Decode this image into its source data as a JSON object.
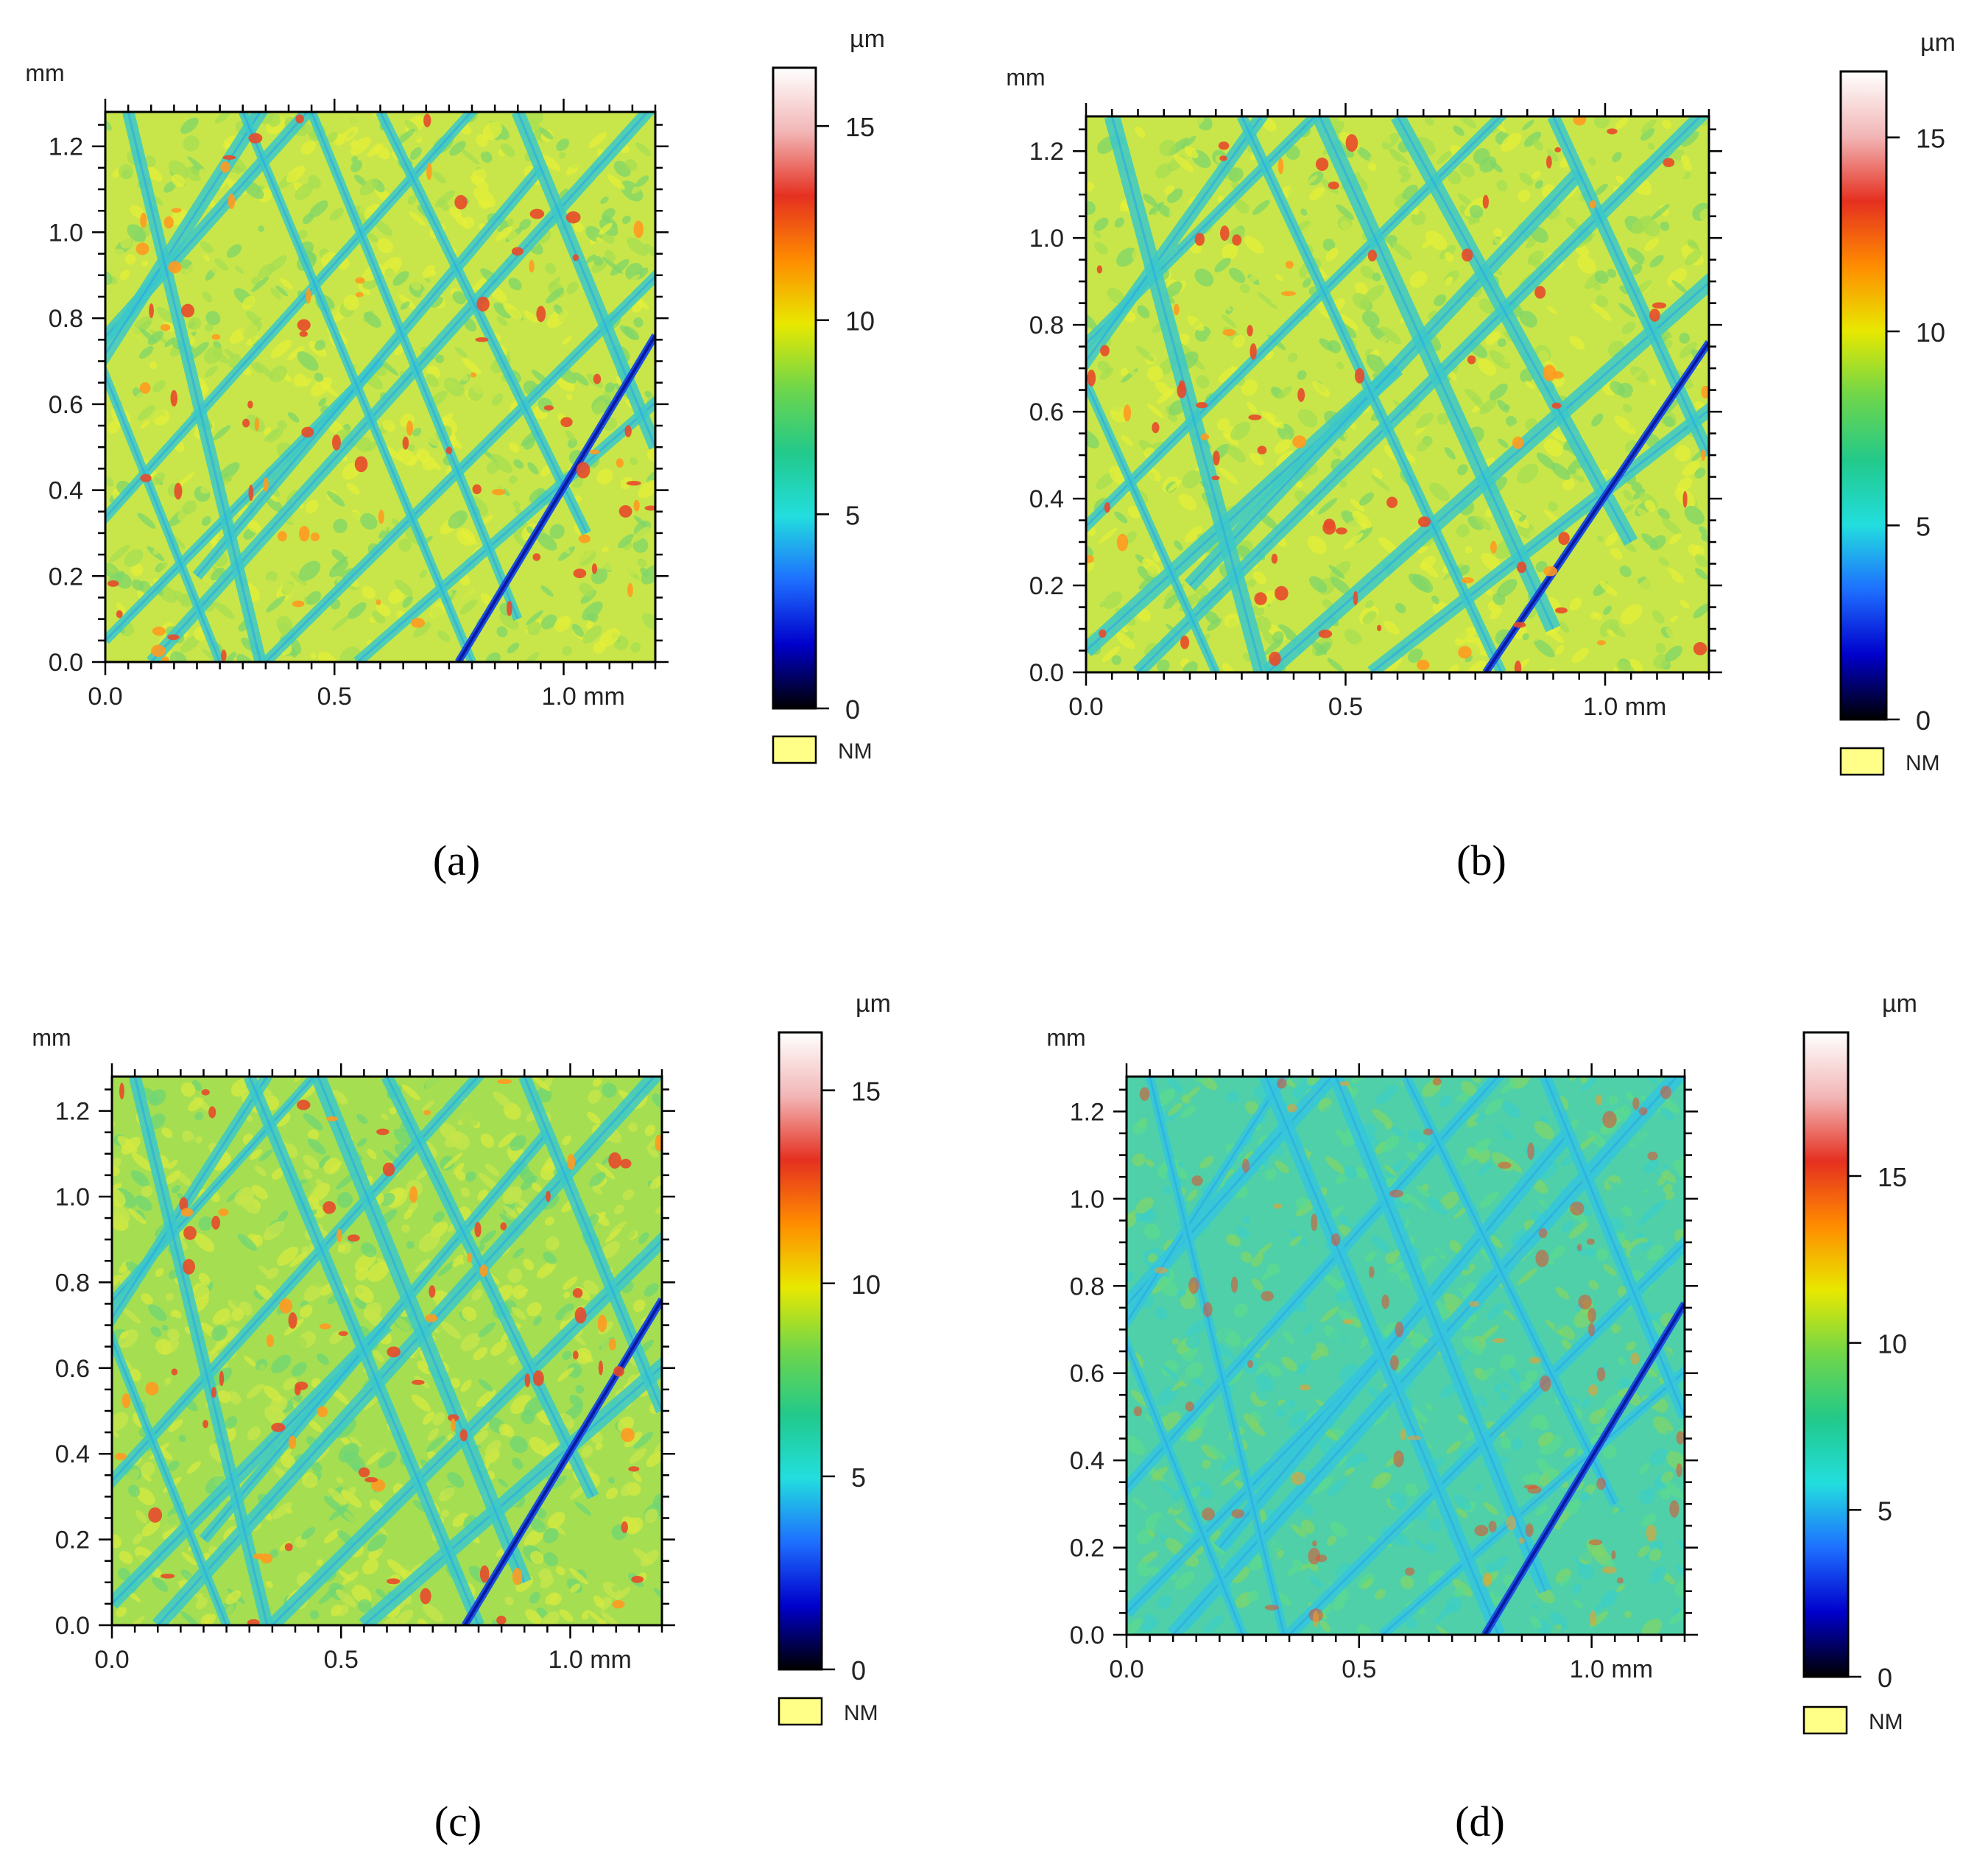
{
  "figure": {
    "captions": [
      "(a)",
      "(b)",
      "(c)",
      "(d)"
    ]
  },
  "colormap": {
    "stops": [
      "#000000",
      "#0000cc",
      "#1e6fff",
      "#22dede",
      "#22c98a",
      "#6fd64a",
      "#e8e800",
      "#ff8c00",
      "#e53020",
      "#f2b6b6",
      "#ffffff"
    ],
    "nm_color": "#ffff88"
  },
  "chart_data": [
    {
      "panel": "a",
      "type": "heatmap",
      "title": "",
      "description_type": "surface height map",
      "xlabel_unit": "mm",
      "ylabel_unit": "mm",
      "xlim": [
        0,
        1.2
      ],
      "ylim": [
        0,
        1.28
      ],
      "x_ticks": [
        0.0,
        0.5,
        1.0
      ],
      "x_tick_labels": [
        "0.0",
        "0.5",
        "1.0 mm"
      ],
      "y_ticks": [
        0.0,
        0.2,
        0.4,
        0.6,
        0.8,
        1.0,
        1.2
      ],
      "y_tick_labels": [
        "0.0",
        "0.2",
        "0.4",
        "0.6",
        "0.8",
        "1.0",
        "1.2"
      ],
      "y_unit_label": "mm",
      "colorbar": {
        "unit": "µm",
        "range": [
          0,
          16.5
        ],
        "ticks": [
          0,
          5,
          10,
          15
        ],
        "tick_labels": [
          "0",
          "5",
          "10",
          "15"
        ],
        "nm_label": "NM"
      }
    },
    {
      "panel": "b",
      "type": "heatmap",
      "title": "",
      "description_type": "surface height map",
      "xlabel_unit": "mm",
      "ylabel_unit": "mm",
      "xlim": [
        0,
        1.2
      ],
      "ylim": [
        0,
        1.28
      ],
      "x_ticks": [
        0.0,
        0.5,
        1.0
      ],
      "x_tick_labels": [
        "0.0",
        "0.5",
        "1.0 mm"
      ],
      "y_ticks": [
        0.0,
        0.2,
        0.4,
        0.6,
        0.8,
        1.0,
        1.2
      ],
      "y_tick_labels": [
        "0.0",
        "0.2",
        "0.4",
        "0.6",
        "0.8",
        "1.0",
        "1.2"
      ],
      "y_unit_label": "mm",
      "colorbar": {
        "unit": "µm",
        "range": [
          0,
          16.7
        ],
        "ticks": [
          0,
          5,
          10,
          15
        ],
        "tick_labels": [
          "0",
          "5",
          "10",
          "15"
        ],
        "nm_label": "NM"
      }
    },
    {
      "panel": "c",
      "type": "heatmap",
      "title": "",
      "description_type": "surface height map",
      "xlabel_unit": "mm",
      "ylabel_unit": "mm",
      "xlim": [
        0,
        1.2
      ],
      "ylim": [
        0,
        1.28
      ],
      "x_ticks": [
        0.0,
        0.5,
        1.0
      ],
      "x_tick_labels": [
        "0.0",
        "0.5",
        "1.0 mm"
      ],
      "y_ticks": [
        0.0,
        0.2,
        0.4,
        0.6,
        0.8,
        1.0,
        1.2
      ],
      "y_tick_labels": [
        "0.0",
        "0.2",
        "0.4",
        "0.6",
        "0.8",
        "1.0",
        "1.2"
      ],
      "y_unit_label": "mm",
      "colorbar": {
        "unit": "µm",
        "range": [
          0,
          16.5
        ],
        "ticks": [
          0,
          5,
          10,
          15
        ],
        "tick_labels": [
          "0",
          "5",
          "10",
          "15"
        ],
        "nm_label": "NM"
      }
    },
    {
      "panel": "d",
      "type": "heatmap",
      "title": "",
      "description_type": "surface height map",
      "xlabel_unit": "mm",
      "ylabel_unit": "mm",
      "xlim": [
        0,
        1.2
      ],
      "ylim": [
        0,
        1.28
      ],
      "x_ticks": [
        0.0,
        0.5,
        1.0
      ],
      "x_tick_labels": [
        "0.0",
        "0.5",
        "1.0 mm"
      ],
      "y_ticks": [
        0.0,
        0.2,
        0.4,
        0.6,
        0.8,
        1.0,
        1.2
      ],
      "y_tick_labels": [
        "0.0",
        "0.2",
        "0.4",
        "0.6",
        "0.8",
        "1.0",
        "1.2"
      ],
      "y_unit_label": "mm",
      "colorbar": {
        "unit": "µm",
        "range": [
          0,
          19.3
        ],
        "ticks": [
          0,
          5,
          10,
          15
        ],
        "tick_labels": [
          "0",
          "5",
          "10",
          "15"
        ],
        "nm_label": "NM"
      }
    }
  ]
}
